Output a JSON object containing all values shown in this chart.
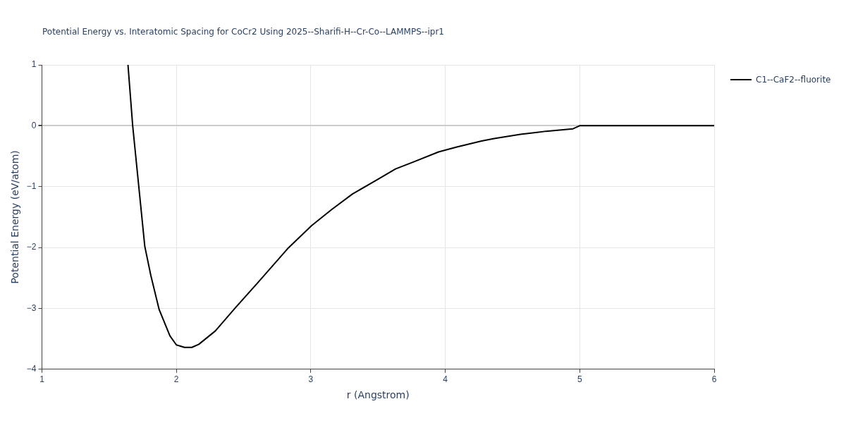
{
  "chart_data": {
    "type": "line",
    "title": "Potential Energy vs. Interatomic Spacing for CoCr2 Using 2025--Sharifi-H--Cr-Co--LAMMPS--ipr1",
    "xlabel": "r (Angstrom)",
    "ylabel": "Potential Energy (eV/atom)",
    "series": [
      {
        "name": "C1--CaF2--fluorite",
        "color": "#000000",
        "x": [
          1.64,
          1.675,
          1.72,
          1.765,
          1.81,
          1.872,
          1.952,
          2.0,
          2.06,
          2.115,
          2.167,
          2.29,
          2.435,
          2.613,
          2.827,
          3.006,
          3.153,
          3.31,
          3.46,
          3.63,
          3.768,
          3.95,
          4.086,
          4.27,
          4.364,
          4.56,
          4.75,
          4.95,
          5.0,
          6.0
        ],
        "values": [
          1.0,
          0.0,
          -0.99,
          -1.98,
          -2.46,
          -3.02,
          -3.45,
          -3.6,
          -3.64,
          -3.64,
          -3.59,
          -3.37,
          -3.0,
          -2.56,
          -2.02,
          -1.64,
          -1.38,
          -1.12,
          -0.93,
          -0.71,
          -0.59,
          -0.43,
          -0.35,
          -0.25,
          -0.21,
          -0.14,
          -0.09,
          -0.05,
          0,
          0
        ]
      }
    ],
    "xlim": [
      1,
      6
    ],
    "xticks": [
      1,
      2,
      3,
      4,
      5,
      6
    ],
    "ylim": [
      -4,
      1
    ],
    "yticks": [
      -4,
      -3,
      -2,
      -1,
      0,
      1
    ],
    "grid": true,
    "legend": "top right",
    "marker": "none",
    "line_style": "solid"
  }
}
